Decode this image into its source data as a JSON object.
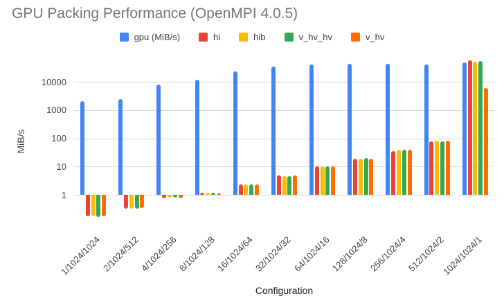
{
  "title": "GPU Packing Performance (OpenMPI 4.0.5)",
  "axes": {
    "y_title": "MiB/s",
    "x_title": "Configuration"
  },
  "chart_data": {
    "type": "bar",
    "title": "GPU Packing Performance (OpenMPI 4.0.5)",
    "xlabel": "Configuration",
    "ylabel": "MiB/s",
    "y_scale": "log",
    "y_ticks": [
      1,
      10,
      100,
      1000,
      10000
    ],
    "ylim": [
      0.15,
      60000
    ],
    "grid": true,
    "legend_position": "top",
    "categories": [
      "1/1024/1024",
      "2/1024/512",
      "4/1024/256",
      "8/1024/128",
      "16/1024/64",
      "32/1024/32",
      "64/1024/16",
      "128/1024/8",
      "256/1024/4",
      "512/1024/2",
      "1024/1024/1"
    ],
    "series": [
      {
        "name": "gpu (MiB/s)",
        "color": "#4285F4",
        "values": [
          2100,
          2500,
          8000,
          12000,
          23500,
          34000,
          40000,
          43000,
          44000,
          42000,
          50000
        ]
      },
      {
        "name": "hi",
        "color": "#EA4335",
        "values": [
          0.17,
          0.32,
          0.75,
          1.2,
          2.4,
          5.0,
          10,
          19,
          35,
          78,
          58000
        ]
      },
      {
        "name": "hib",
        "color": "#FBBC04",
        "values": [
          0.17,
          0.32,
          0.8,
          1.2,
          2.3,
          4.7,
          10,
          19,
          39,
          80,
          52000
        ]
      },
      {
        "name": "v_hv_hv",
        "color": "#34A853",
        "values": [
          0.16,
          0.32,
          0.8,
          1.2,
          2.3,
          4.7,
          10,
          20,
          40,
          76,
          56000
        ]
      },
      {
        "name": "v_hv",
        "color": "#FF6D01",
        "values": [
          0.17,
          0.34,
          0.75,
          1.15,
          2.4,
          5.0,
          10,
          19,
          39,
          80,
          6100
        ]
      }
    ]
  }
}
